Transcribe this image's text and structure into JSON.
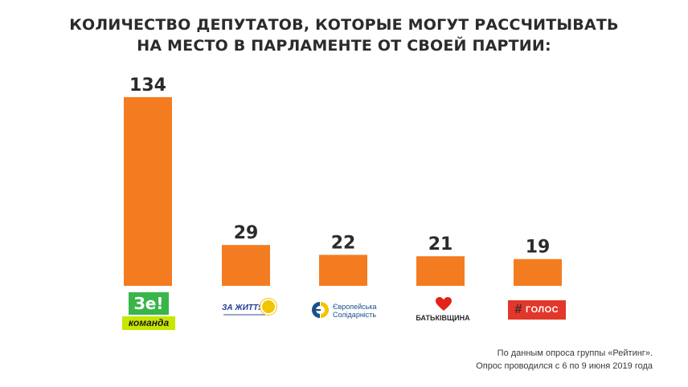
{
  "title": {
    "line1": "КОЛИЧЕСТВО ДЕПУТАТОВ, КОТОРЫЕ МОГУТ РАССЧИТЫВАТЬ",
    "line2": "НА МЕСТО В ПАРЛАМЕНТЕ ОТ СВОЕЙ ПАРТИИ:"
  },
  "chart_data": {
    "type": "bar",
    "categories": [
      "Зе! команда",
      "ЗА ЖИТТЯ!",
      "Європейська Солідарність",
      "БАТЬКІВЩИНА",
      "ГОЛОС"
    ],
    "values": [
      134,
      29,
      22,
      21,
      19
    ],
    "title": "КОЛИЧЕСТВО ДЕПУТАТОВ, КОТОРЫЕ МОГУТ РАССЧИТЫВАТЬ НА МЕСТО В ПАРЛАМЕНТЕ ОТ СВОЕЙ ПАРТИИ:",
    "xlabel": "",
    "ylabel": "",
    "ylim": [
      0,
      134
    ],
    "grid": false,
    "legend": "none",
    "bar_color": "#f47c20",
    "label_color": "#2b2b2b"
  },
  "logos": {
    "ze": {
      "top": "Зе!",
      "bottom": "команда",
      "green": "#39b54a",
      "lime": "#c7e600"
    },
    "zz": {
      "text": "ЗА ЖИТТЯ!",
      "blue": "#1f3a93",
      "yellow": "#f4c400"
    },
    "es": {
      "line1": "Європейська",
      "line2": "Солідарність",
      "blue": "#1a4f8b",
      "yellow": "#f4c400"
    },
    "bat": {
      "text": "БАТЬКІВЩИНА",
      "red": "#e2231a"
    },
    "golos": {
      "hash": "#",
      "text": "ГОЛОС",
      "red": "#e2372b"
    }
  },
  "source": {
    "line1": "По данным опроса группы «Рейтинг».",
    "line2": "Опрос проводился с 6 по 9 июня 2019 года"
  }
}
